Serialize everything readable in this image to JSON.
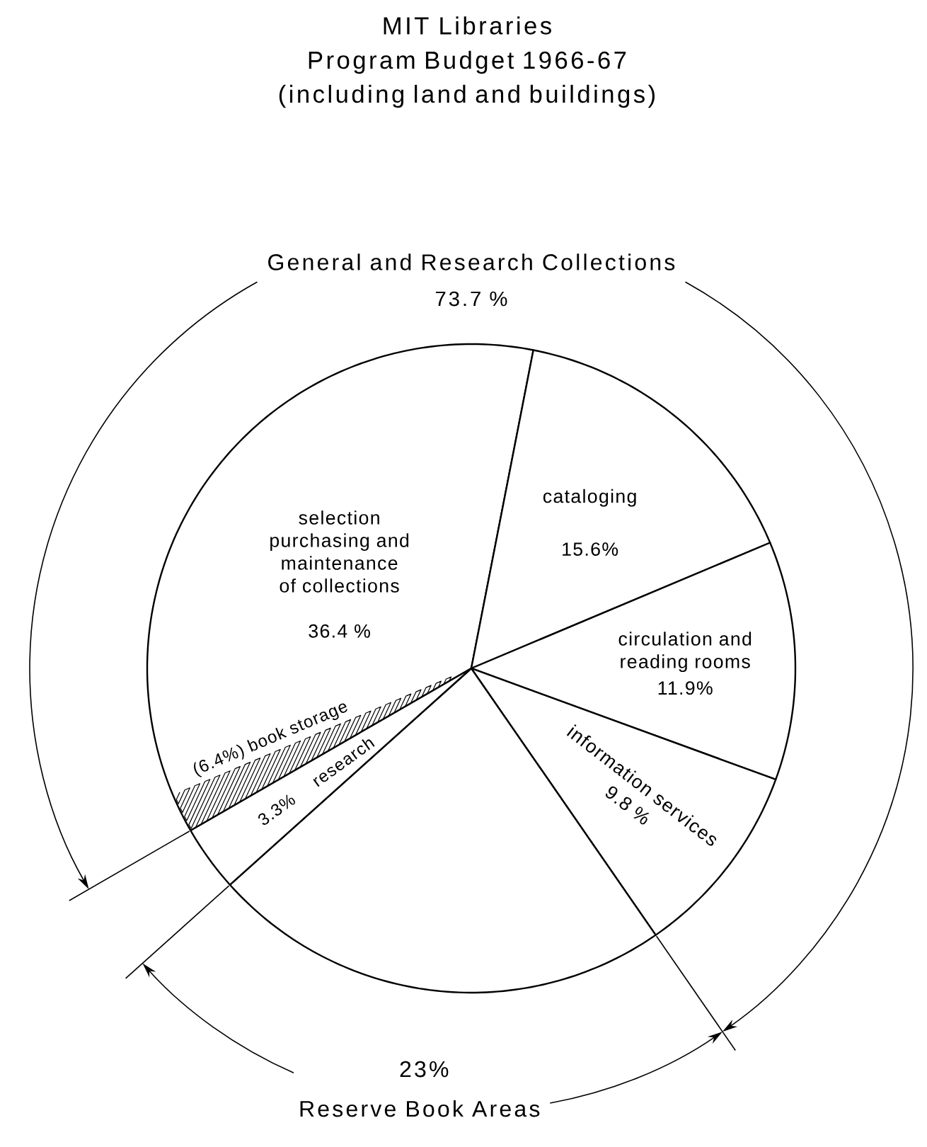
{
  "chart_data": {
    "type": "pie",
    "title": "MIT Libraries",
    "subtitle": "Program Budget 1966-67 (including land and buildings)",
    "categories": [
      "selection purchasing and maintenance of collections",
      "cataloging",
      "circulation and reading rooms",
      "information services",
      "Reserve Book Areas",
      "research"
    ],
    "values": [
      36.4,
      15.6,
      11.9,
      9.8,
      23,
      3.3
    ],
    "value_labels": [
      "36.4 %",
      "15.6%",
      "11.9%",
      "9.8 %",
      "23%",
      "3.3%"
    ],
    "colors": [
      "#ffffff",
      "#ffffff",
      "#ffffff",
      "#ffffff",
      "#ffffff",
      "#ffffff"
    ],
    "annotations": [
      "General and Research Collections",
      "73.7 %",
      "(6.4%) book storage"
    ]
  }
}
